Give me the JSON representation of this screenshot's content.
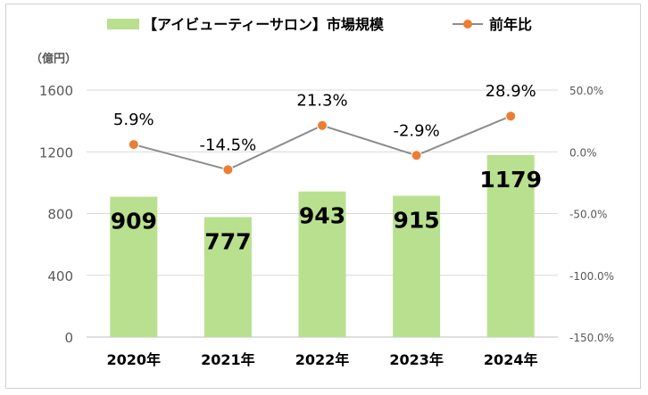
{
  "chart_data": {
    "type": "bar+line",
    "categories": [
      "2020年",
      "2021年",
      "2022年",
      "2023年",
      "2024年"
    ],
    "unit_label": "（億円）",
    "series": [
      {
        "name": "【アイビューティーサロン】市場規模",
        "kind": "bar",
        "axis": "left",
        "values": [
          909,
          777,
          943,
          915,
          1179
        ],
        "data_labels": [
          "909",
          "777",
          "943",
          "915",
          "1179"
        ],
        "color": "#b9e08f"
      },
      {
        "name": "前年比",
        "kind": "line",
        "axis": "right",
        "values": [
          5.9,
          -14.5,
          21.3,
          -2.9,
          28.9
        ],
        "data_labels": [
          "5.9%",
          "-14.5%",
          "21.3%",
          "-2.9%",
          "28.9%"
        ],
        "line_color": "#8c8c8c",
        "marker_color": "#ed7d31"
      }
    ],
    "left_axis": {
      "ylim": [
        0,
        1600
      ],
      "ticks": [
        "0",
        "400",
        "800",
        "1200",
        "1600"
      ]
    },
    "right_axis": {
      "ylim": [
        -150,
        50
      ],
      "ticks": [
        "-150.0%",
        "-100.0%",
        "-50.0%",
        "0.0%",
        "50.0%"
      ]
    },
    "legend_position": "top",
    "grid": true
  }
}
